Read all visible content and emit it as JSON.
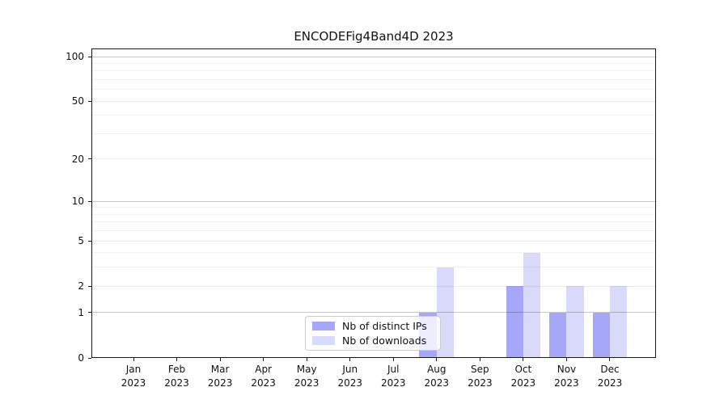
{
  "chart_data": {
    "type": "bar",
    "title": "ENCODEFig4Band4D 2023",
    "categories": [
      "Jan",
      "Feb",
      "Mar",
      "Apr",
      "May",
      "Jun",
      "Jul",
      "Aug",
      "Sep",
      "Oct",
      "Nov",
      "Dec"
    ],
    "category_year": "2023",
    "series": [
      {
        "name": "Nb of distinct IPs",
        "color": "#a7a7f7",
        "values": [
          0,
          0,
          0,
          0,
          0,
          0,
          0,
          1,
          0,
          2,
          1,
          1
        ]
      },
      {
        "name": "Nb of downloads",
        "color": "#d9d9f9",
        "values": [
          0,
          0,
          0,
          0,
          0,
          0,
          0,
          3,
          0,
          4,
          2,
          2
        ]
      }
    ],
    "xlabel": "",
    "ylabel": "",
    "yscale": "log1p",
    "ylim": [
      0,
      100
    ],
    "yticks": [
      0,
      1,
      2,
      5,
      10,
      20,
      50,
      100
    ],
    "minor_yticks": [
      3,
      4,
      6,
      7,
      8,
      9,
      30,
      40,
      60,
      70,
      80,
      90
    ],
    "grid": true,
    "legend_position": "lower center"
  }
}
